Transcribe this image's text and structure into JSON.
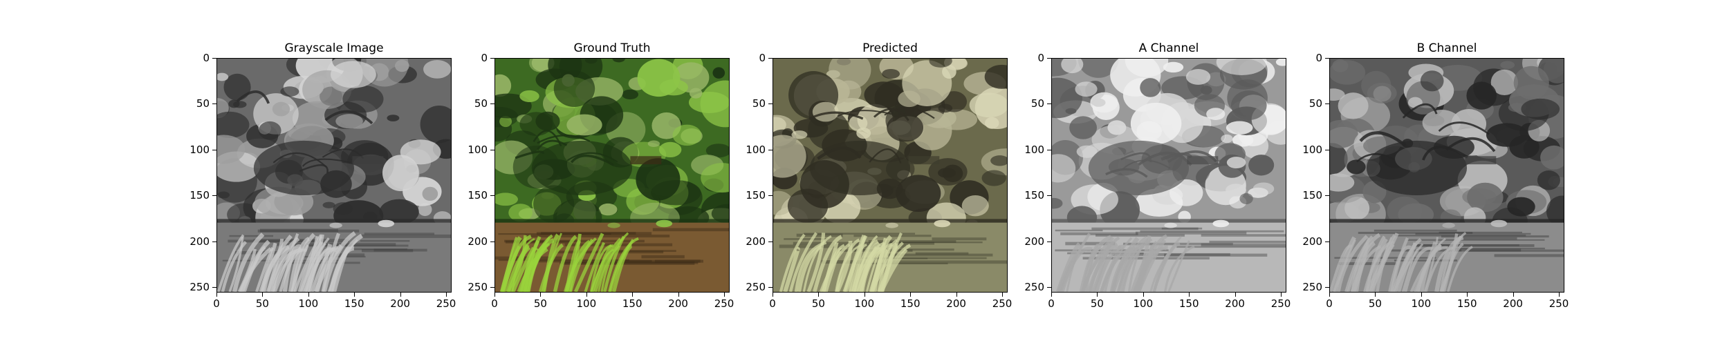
{
  "figure": {
    "panels": [
      {
        "title": "Grayscale Image",
        "image": "grayscale forest pond scene",
        "scheme": "gray"
      },
      {
        "title": "Ground Truth",
        "image": "full color forest pond scene with green foliage",
        "scheme": "color"
      },
      {
        "title": "Predicted",
        "image": "muted sepia-green colorized forest pond scene",
        "scheme": "pred"
      },
      {
        "title": "A Channel",
        "image": "grayscale A chroma channel map, mostly light",
        "scheme": "achan"
      },
      {
        "title": "B Channel",
        "image": "grayscale B chroma channel map, mostly dark",
        "scheme": "bchan"
      }
    ],
    "yticks": [
      "0",
      "50",
      "100",
      "150",
      "200",
      "250"
    ],
    "xticks": [
      "0",
      "50",
      "100",
      "150",
      "200",
      "250"
    ],
    "axis_max": 256
  },
  "colors": {
    "gray": {
      "sky": "#9e9e9e",
      "tree_dark": "#2c2c2c",
      "tree_mid": "#6a6a6a",
      "tree_light": "#d6d6d6",
      "water": "#7a7a7a",
      "water_dark": "#3d3d3d",
      "fore": "#c9c9c9"
    },
    "color": {
      "sky": "#9bb86a",
      "tree_dark": "#1c3413",
      "tree_mid": "#3d6a22",
      "tree_light": "#8dc547",
      "water": "#7a5a32",
      "water_dark": "#3a2a16",
      "fore": "#9ad43c"
    },
    "pred": {
      "sky": "#b8b596",
      "tree_dark": "#2f2d22",
      "tree_mid": "#6b6a4c",
      "tree_light": "#d9d6b6",
      "water": "#8a8a68",
      "water_dark": "#3e3d2e",
      "fore": "#d3d8a4"
    },
    "achan": {
      "sky": "#d8d8d8",
      "tree_dark": "#5a5a5a",
      "tree_mid": "#9a9a9a",
      "tree_light": "#efefef",
      "water": "#b8b8b8",
      "water_dark": "#4a4a4a",
      "fore": "#a8a8a8"
    },
    "bchan": {
      "sky": "#6e6e6e",
      "tree_dark": "#262626",
      "tree_mid": "#5a5a5a",
      "tree_light": "#bcbcbc",
      "water": "#8c8c8c",
      "water_dark": "#3a3a3a",
      "fore": "#b4b4b4"
    }
  }
}
